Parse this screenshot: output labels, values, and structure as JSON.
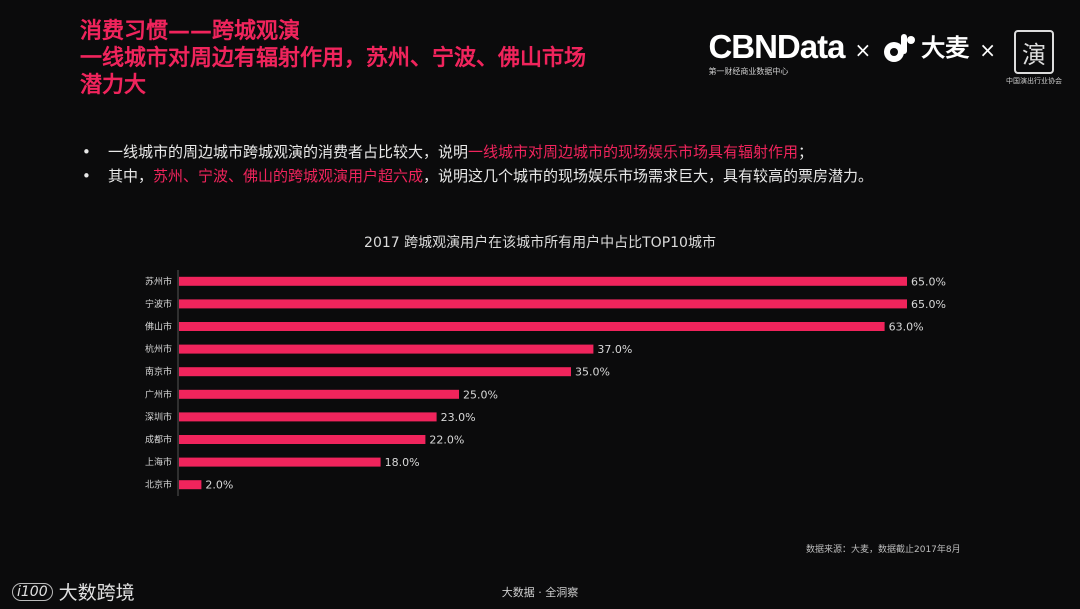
{
  "header": {
    "title_lines": [
      "消费习惯——跨城观演",
      "一线城市对周边有辐射作用，苏州、宁波、佛山市场",
      "潜力大"
    ]
  },
  "logos": {
    "cbn_name": "CBNData",
    "cbn_sub": "第一财经商业数据中心",
    "times": "×",
    "damai_name": "大麦",
    "assoc_seal": "演",
    "assoc_sub": "中国演出行业协会"
  },
  "bullets": {
    "marker": "•",
    "b1_text": "一线城市的周边城市跨城观演的消费者占比较大，说明",
    "b1_hl": "一线城市对周边城市的现场娱乐市场具有辐射作用",
    "b1_end": "；",
    "b2_text": "其中，",
    "b2_hl": "苏州、宁波、佛山的跨城观演用户超六成",
    "b2_end": "，说明这几个城市的现场娱乐市场需求巨大，具有较高的票房潜力。"
  },
  "chart_data": {
    "type": "bar",
    "orientation": "horizontal",
    "title": "2017 跨城观演用户在该城市所有用户中占比TOP10城市",
    "categories": [
      "苏州市",
      "宁波市",
      "佛山市",
      "杭州市",
      "南京市",
      "广州市",
      "深圳市",
      "成都市",
      "上海市",
      "北京市"
    ],
    "values": [
      65.0,
      65.0,
      63.0,
      37.0,
      35.0,
      25.0,
      23.0,
      22.0,
      18.0,
      2.0
    ],
    "value_labels": [
      "65.0%",
      "65.0%",
      "63.0%",
      "37.0%",
      "35.0%",
      "25.0%",
      "23.0%",
      "22.0%",
      "18.0%",
      "2.0%"
    ],
    "unit": "%",
    "xlim": [
      0,
      65
    ],
    "bar_color": "#f0245c",
    "grid": false,
    "legend": false
  },
  "source_note": "数据来源：大麦，数据截止2017年8月",
  "footer": "大数据 · 全洞察",
  "watermark": "大数跨境",
  "watermark_icon": "i100"
}
